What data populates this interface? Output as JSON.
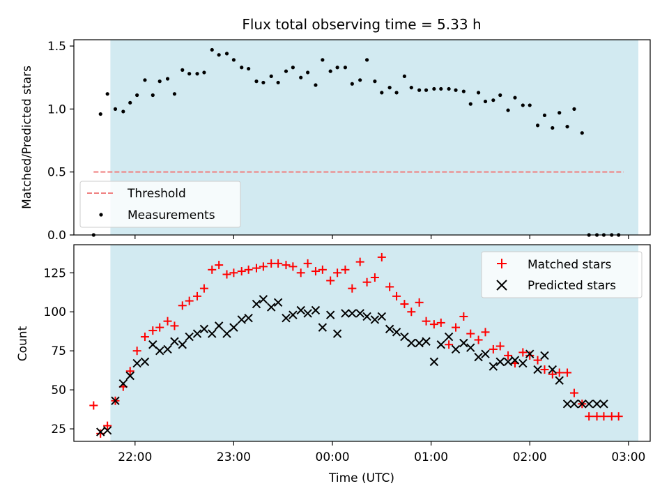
{
  "figure": {
    "title": "Flux total observing time = 5.33 h"
  },
  "chart_data": [
    {
      "type": "scatter",
      "panel": "top",
      "ylabel": "Matched/Predicted stars",
      "xlim": [
        -2.62,
        3.22
      ],
      "ylim": [
        0,
        1.55
      ],
      "yticks": [
        0.0,
        0.5,
        1.0,
        1.5
      ],
      "yticklabels": [
        "0.0",
        "0.5",
        "1.0",
        "1.5"
      ],
      "xticks": [
        -2,
        -1,
        0,
        1,
        2,
        3
      ],
      "shaded_span": [
        -2.25,
        3.1
      ],
      "shaded_color": "#add8e6",
      "legend_position": "lower-left",
      "threshold": {
        "name": "Threshold",
        "value": 0.5,
        "x_range": [
          -2.42,
          2.95
        ],
        "color": "#f08080"
      },
      "series": [
        {
          "name": "Measurements",
          "color": "#000000",
          "marker": "dot",
          "x": [
            -2.42,
            -2.35,
            -2.28,
            -2.2,
            -2.12,
            -2.05,
            -1.98,
            -1.9,
            -1.82,
            -1.75,
            -1.67,
            -1.6,
            -1.52,
            -1.45,
            -1.37,
            -1.3,
            -1.22,
            -1.15,
            -1.07,
            -1.0,
            -0.92,
            -0.85,
            -0.77,
            -0.7,
            -0.62,
            -0.55,
            -0.47,
            -0.4,
            -0.32,
            -0.25,
            -0.17,
            -0.1,
            -0.02,
            0.05,
            0.13,
            0.2,
            0.28,
            0.35,
            0.43,
            0.5,
            0.58,
            0.65,
            0.73,
            0.8,
            0.88,
            0.95,
            1.03,
            1.1,
            1.18,
            1.25,
            1.33,
            1.4,
            1.48,
            1.55,
            1.63,
            1.7,
            1.78,
            1.85,
            1.93,
            2.0,
            2.08,
            2.15,
            2.23,
            2.3,
            2.38,
            2.45,
            2.53,
            2.6,
            2.68,
            2.75,
            2.83,
            2.9
          ],
          "y": [
            0.0,
            0.96,
            1.12,
            1.0,
            0.98,
            1.05,
            1.11,
            1.23,
            1.11,
            1.22,
            1.24,
            1.12,
            1.31,
            1.28,
            1.28,
            1.29,
            1.47,
            1.43,
            1.44,
            1.39,
            1.33,
            1.32,
            1.22,
            1.21,
            1.26,
            1.21,
            1.3,
            1.33,
            1.25,
            1.29,
            1.19,
            1.39,
            1.3,
            1.33,
            1.33,
            1.2,
            1.23,
            1.39,
            1.22,
            1.13,
            1.17,
            1.13,
            1.26,
            1.17,
            1.15,
            1.15,
            1.16,
            1.16,
            1.16,
            1.15,
            1.14,
            1.04,
            1.13,
            1.06,
            1.07,
            1.11,
            0.99,
            1.09,
            1.03,
            1.03,
            0.87,
            0.95,
            0.85,
            0.97,
            0.86,
            1.0,
            0.81,
            0.0,
            0.0,
            0.0,
            0.0,
            0.0
          ]
        }
      ]
    },
    {
      "type": "scatter",
      "panel": "bottom",
      "xlabel": "Time (UTC)",
      "ylabel": "Count",
      "xlim": [
        -2.62,
        3.22
      ],
      "ylim": [
        17,
        143
      ],
      "yticks": [
        25,
        50,
        75,
        100,
        125
      ],
      "yticklabels": [
        "25",
        "50",
        "75",
        "100",
        "125"
      ],
      "xticks": [
        -2,
        -1,
        0,
        1,
        2,
        3
      ],
      "xticklabels": [
        "22:00",
        "23:00",
        "00:00",
        "01:00",
        "02:00",
        "03:00"
      ],
      "shaded_span": [
        -2.25,
        3.1
      ],
      "shaded_color": "#add8e6",
      "legend_position": "upper-right",
      "series": [
        {
          "name": "Matched stars",
          "color": "#ff0000",
          "marker": "plus",
          "x": [
            -2.42,
            -2.35,
            -2.28,
            -2.2,
            -2.12,
            -2.05,
            -1.98,
            -1.9,
            -1.82,
            -1.75,
            -1.67,
            -1.6,
            -1.52,
            -1.45,
            -1.37,
            -1.3,
            -1.22,
            -1.15,
            -1.07,
            -1.0,
            -0.92,
            -0.85,
            -0.77,
            -0.7,
            -0.62,
            -0.55,
            -0.47,
            -0.4,
            -0.32,
            -0.25,
            -0.17,
            -0.1,
            -0.02,
            0.05,
            0.13,
            0.2,
            0.28,
            0.35,
            0.43,
            0.5,
            0.58,
            0.65,
            0.73,
            0.8,
            0.88,
            0.95,
            1.03,
            1.1,
            1.18,
            1.25,
            1.33,
            1.4,
            1.48,
            1.55,
            1.63,
            1.7,
            1.78,
            1.85,
            1.93,
            2.0,
            2.08,
            2.15,
            2.23,
            2.3,
            2.38,
            2.45,
            2.53,
            2.6,
            2.68,
            2.75,
            2.83,
            2.9
          ],
          "y": [
            40,
            22,
            27,
            43,
            52,
            62,
            75,
            84,
            88,
            90,
            94,
            91,
            104,
            107,
            110,
            115,
            127,
            130,
            124,
            125,
            126,
            127,
            128,
            129,
            131,
            131,
            130,
            129,
            125,
            131,
            126,
            127,
            120,
            125,
            127,
            115,
            132,
            119,
            122,
            135,
            116,
            110,
            105,
            100,
            106,
            94,
            92,
            93,
            79,
            90,
            97,
            86,
            82,
            87,
            76,
            78,
            72,
            67,
            74,
            72,
            69,
            63,
            60,
            61,
            61,
            48,
            41,
            33,
            33,
            33,
            33,
            33
          ],
          "x_visible_range_note": ""
        },
        {
          "name": "Predicted stars",
          "color": "#000000",
          "marker": "x",
          "x": [
            -2.35,
            -2.28,
            -2.2,
            -2.12,
            -2.05,
            -1.98,
            -1.9,
            -1.82,
            -1.75,
            -1.67,
            -1.6,
            -1.52,
            -1.45,
            -1.37,
            -1.3,
            -1.22,
            -1.15,
            -1.07,
            -1.0,
            -0.92,
            -0.85,
            -0.77,
            -0.7,
            -0.62,
            -0.55,
            -0.47,
            -0.4,
            -0.32,
            -0.25,
            -0.17,
            -0.1,
            -0.02,
            0.05,
            0.13,
            0.2,
            0.28,
            0.35,
            0.43,
            0.5,
            0.58,
            0.65,
            0.73,
            0.8,
            0.88,
            0.95,
            1.03,
            1.1,
            1.18,
            1.25,
            1.33,
            1.4,
            1.48,
            1.55,
            1.63,
            1.7,
            1.78,
            1.85,
            1.93,
            2.0,
            2.08,
            2.15,
            2.23,
            2.3,
            2.38,
            2.45,
            2.53,
            2.6,
            2.68,
            2.75
          ],
          "y": [
            23,
            24,
            43,
            54,
            59,
            67,
            68,
            79,
            75,
            76,
            81,
            79,
            84,
            86,
            89,
            86,
            91,
            86,
            90,
            95,
            96,
            105,
            108,
            103,
            106,
            96,
            98,
            101,
            99,
            101,
            90,
            98,
            86,
            99,
            99,
            99,
            97,
            95,
            97,
            89,
            87,
            84,
            80,
            80,
            81,
            68,
            79,
            84,
            76,
            80,
            77,
            71,
            73,
            65,
            68,
            68,
            69,
            67,
            73,
            63,
            72,
            63,
            56,
            41,
            41,
            41,
            41,
            41,
            41
          ]
        }
      ]
    }
  ]
}
